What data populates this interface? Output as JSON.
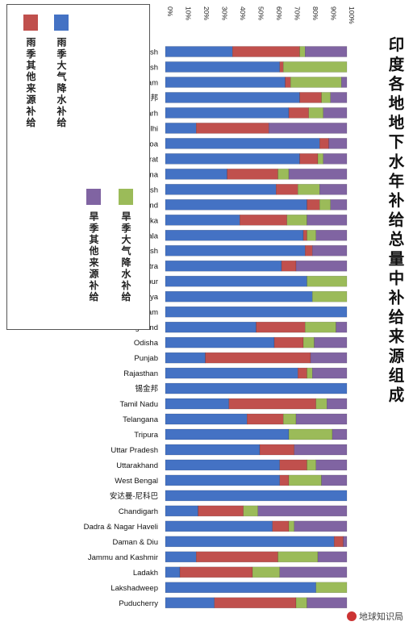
{
  "title": "印度各地地下水年补给总量中补给来源组成",
  "legend": [
    {
      "label": "雨季大气降水补给",
      "color": "#4472c4",
      "icon": "legend-swatch"
    },
    {
      "label": "雨季其他来源补给",
      "color": "#c0504d",
      "icon": "legend-swatch"
    },
    {
      "label": "旱季大气降水补给",
      "color": "#9bbb59",
      "icon": "legend-swatch"
    },
    {
      "label": "旱季其他来源补给",
      "color": "#8064a2",
      "icon": "legend-swatch"
    }
  ],
  "watermark": "地球知识局",
  "chart_data": {
    "type": "bar",
    "orientation": "horizontal",
    "stacked": true,
    "xlim": [
      0,
      100
    ],
    "x_ticks": [
      "0%",
      "10%",
      "20%",
      "30%",
      "40%",
      "50%",
      "60%",
      "70%",
      "80%",
      "90%",
      "100%"
    ],
    "x_axis_position": "top",
    "grid": false,
    "legend_position": "left",
    "categories": [
      "Andhra Pradesh",
      "Arunachal Pradesh",
      "Assam",
      "比哈尔邦",
      "Chhattisgarh",
      "Delhi",
      "Goa",
      "Gujarat",
      "Haryana",
      "Himachal Pradesh",
      "Jharkhand",
      "Karnataka",
      "Kerala",
      "Madhya Pradesh",
      "Maharashtra",
      "Manipur",
      "Meghalaya",
      "Mizoram",
      "Nagaland",
      "Odisha",
      "Punjab",
      "Rajasthan",
      "锡金邦",
      "Tamil Nadu",
      "Telangana",
      "Tripura",
      "Uttar Pradesh",
      "Uttarakhand",
      "West Bengal",
      "安达曼-尼科巴",
      "Chandigarh",
      "Dadra & Nagar Haveli",
      "Daman & Diu",
      "Jammu and Kashmir",
      "Ladakh",
      "Lakshadweep",
      "Puducherry"
    ],
    "series": [
      {
        "name": "雨季大气降水补给",
        "color": "#4472c4",
        "values": [
          37,
          63,
          66,
          74,
          68,
          17,
          85,
          74,
          34,
          61,
          78,
          41,
          76,
          77,
          64,
          78,
          81,
          100,
          50,
          60,
          22,
          73,
          100,
          35,
          45,
          68,
          52,
          63,
          63,
          100,
          18,
          59,
          93,
          17,
          8,
          83,
          27
        ]
      },
      {
        "name": "雨季其他来源补给",
        "color": "#c0504d",
        "values": [
          37,
          2,
          3,
          12,
          11,
          40,
          5,
          10,
          28,
          12,
          7,
          26,
          2,
          4,
          8,
          0,
          0,
          0,
          27,
          16,
          58,
          5,
          0,
          48,
          20,
          0,
          19,
          15,
          5,
          0,
          25,
          9,
          5,
          45,
          40,
          0,
          45
        ]
      },
      {
        "name": "旱季大气降水补给",
        "color": "#9bbb59",
        "values": [
          3,
          35,
          28,
          5,
          8,
          0,
          0,
          3,
          6,
          12,
          6,
          11,
          5,
          0,
          0,
          22,
          19,
          0,
          17,
          6,
          0,
          3,
          0,
          6,
          7,
          24,
          0,
          5,
          18,
          0,
          8,
          3,
          0,
          22,
          15,
          17,
          6
        ]
      },
      {
        "name": "旱季其他来源补给",
        "color": "#8064a2",
        "values": [
          23,
          0,
          3,
          9,
          13,
          43,
          10,
          13,
          32,
          15,
          9,
          22,
          17,
          19,
          28,
          0,
          0,
          0,
          6,
          18,
          20,
          19,
          0,
          11,
          28,
          8,
          29,
          17,
          14,
          0,
          49,
          29,
          2,
          16,
          37,
          0,
          22
        ]
      }
    ]
  }
}
